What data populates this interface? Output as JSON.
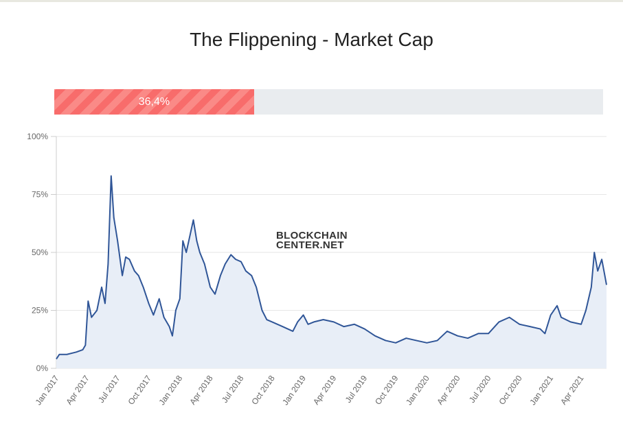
{
  "title": "The Flippening - Market Cap",
  "progress": {
    "value": 36.4,
    "label": "36,4%",
    "color": "#f86c6b"
  },
  "watermark": {
    "line1": "BLOCKCHAIN",
    "line2": "CENTER.NET"
  },
  "chart_data": {
    "type": "area",
    "title": "",
    "xlabel": "",
    "ylabel": "",
    "ylim": [
      0,
      100
    ],
    "xlim": [
      "2017-01-01",
      "2021-06-15"
    ],
    "yticks": [
      "0%",
      "25%",
      "50%",
      "75%",
      "100%"
    ],
    "yticks_values": [
      0,
      25,
      50,
      75,
      100
    ],
    "xticks": [
      "Jan 2017",
      "Apr 2017",
      "Jul 2017",
      "Oct 2017",
      "Jan 2018",
      "Apr 2018",
      "Jul 2018",
      "Oct 2018",
      "Jan 2019",
      "Apr 2019",
      "Jul 2019",
      "Oct 2019",
      "Jan 2020",
      "Apr 2020",
      "Jul 2020",
      "Oct 2020",
      "Jan 2021",
      "Apr 2021"
    ],
    "xticks_dates": [
      "2017-01-01",
      "2017-04-01",
      "2017-07-01",
      "2017-10-01",
      "2018-01-01",
      "2018-04-01",
      "2018-07-01",
      "2018-10-01",
      "2019-01-01",
      "2019-04-01",
      "2019-07-01",
      "2019-10-01",
      "2020-01-01",
      "2020-04-01",
      "2020-07-01",
      "2020-10-01",
      "2021-01-01",
      "2021-04-01"
    ],
    "grid": true,
    "line_color": "#2f5597",
    "fill_color": "#e8eef7",
    "x": [
      "2017-01-01",
      "2017-01-10",
      "2017-02-01",
      "2017-03-01",
      "2017-03-20",
      "2017-03-28",
      "2017-04-05",
      "2017-04-15",
      "2017-05-01",
      "2017-05-15",
      "2017-05-25",
      "2017-06-03",
      "2017-06-12",
      "2017-06-20",
      "2017-07-01",
      "2017-07-15",
      "2017-07-25",
      "2017-08-05",
      "2017-08-20",
      "2017-09-01",
      "2017-09-15",
      "2017-10-01",
      "2017-10-15",
      "2017-11-01",
      "2017-11-15",
      "2017-12-01",
      "2017-12-10",
      "2017-12-20",
      "2018-01-01",
      "2018-01-10",
      "2018-01-20",
      "2018-02-01",
      "2018-02-10",
      "2018-02-20",
      "2018-03-01",
      "2018-03-15",
      "2018-04-01",
      "2018-04-15",
      "2018-05-01",
      "2018-05-15",
      "2018-06-01",
      "2018-06-15",
      "2018-07-01",
      "2018-07-15",
      "2018-08-01",
      "2018-08-15",
      "2018-09-01",
      "2018-09-15",
      "2018-10-01",
      "2018-11-01",
      "2018-12-01",
      "2018-12-15",
      "2019-01-01",
      "2019-01-15",
      "2019-02-01",
      "2019-03-01",
      "2019-04-01",
      "2019-05-01",
      "2019-06-01",
      "2019-07-01",
      "2019-08-01",
      "2019-09-01",
      "2019-10-01",
      "2019-11-01",
      "2019-12-01",
      "2020-01-01",
      "2020-02-01",
      "2020-03-01",
      "2020-04-01",
      "2020-05-01",
      "2020-06-01",
      "2020-07-01",
      "2020-08-01",
      "2020-09-01",
      "2020-10-01",
      "2020-11-01",
      "2020-12-01",
      "2020-12-15",
      "2021-01-01",
      "2021-01-20",
      "2021-02-01",
      "2021-03-01",
      "2021-04-01",
      "2021-04-15",
      "2021-05-01",
      "2021-05-10",
      "2021-05-20",
      "2021-06-01",
      "2021-06-10",
      "2021-06-15"
    ],
    "values": [
      4,
      6,
      6,
      7,
      8,
      10,
      29,
      22,
      25,
      35,
      28,
      45,
      83,
      65,
      55,
      40,
      48,
      47,
      42,
      40,
      35,
      28,
      23,
      30,
      22,
      18,
      14,
      25,
      30,
      55,
      50,
      58,
      64,
      55,
      50,
      45,
      35,
      32,
      40,
      45,
      49,
      47,
      46,
      42,
      40,
      35,
      25,
      21,
      20,
      18,
      16,
      20,
      23,
      19,
      20,
      21,
      20,
      18,
      19,
      17,
      14,
      12,
      11,
      13,
      12,
      11,
      12,
      16,
      14,
      13,
      15,
      15,
      20,
      22,
      19,
      18,
      17,
      15,
      23,
      27,
      22,
      20,
      19,
      25,
      35,
      50,
      42,
      47,
      40,
      36
    ]
  }
}
